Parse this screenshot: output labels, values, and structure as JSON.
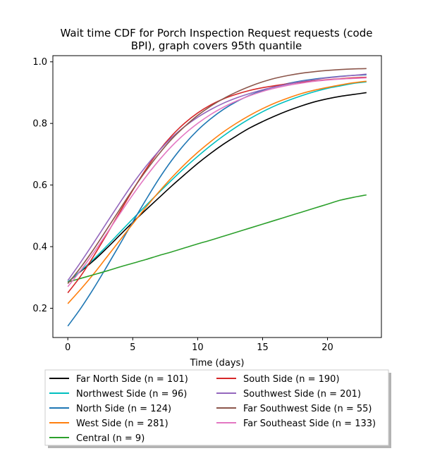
{
  "chart_data": {
    "type": "line",
    "title": "Wait time CDF for Porch Inspection Request  requests (code BPI), graph covers 95th quantile",
    "title_lines": [
      "Wait time CDF for Porch Inspection Request  requests (code",
      "BPI), graph covers 95th quantile"
    ],
    "xlabel": "Time (days)",
    "ylabel": "",
    "xlim": [
      -1.15,
      24.15
    ],
    "ylim": [
      0.105,
      1.02
    ],
    "x_ticks": [
      0,
      5,
      10,
      15,
      20
    ],
    "y_ticks": [
      0.2,
      0.4,
      0.6,
      0.8,
      1.0
    ],
    "x_tick_labels": [
      "0",
      "5",
      "10",
      "15",
      "20"
    ],
    "y_tick_labels": [
      "0.2",
      "0.4",
      "0.6",
      "0.8",
      "1.0"
    ],
    "grid": false,
    "legend_placement": "below plot, two columns",
    "x": [
      0,
      1,
      2,
      3,
      4,
      5,
      6,
      7,
      8,
      9,
      10,
      11,
      12,
      13,
      14,
      15,
      16,
      17,
      18,
      19,
      20,
      21,
      22,
      23
    ],
    "series": [
      {
        "name": "Far North Side (n = 101)",
        "color": "#000000",
        "values": [
          0.285,
          0.32,
          0.355,
          0.395,
          0.437,
          0.479,
          0.519,
          0.558,
          0.597,
          0.634,
          0.67,
          0.703,
          0.733,
          0.76,
          0.785,
          0.806,
          0.825,
          0.842,
          0.857,
          0.87,
          0.88,
          0.888,
          0.894,
          0.9
        ]
      },
      {
        "name": "Northwest Side (n = 96)",
        "color": "#00bfbf",
        "values": [
          0.285,
          0.322,
          0.36,
          0.402,
          0.446,
          0.49,
          0.533,
          0.575,
          0.616,
          0.656,
          0.693,
          0.728,
          0.76,
          0.789,
          0.815,
          0.838,
          0.858,
          0.875,
          0.89,
          0.903,
          0.914,
          0.922,
          0.93,
          0.935
        ]
      },
      {
        "name": "North Side (n = 124)",
        "color": "#1f77b4",
        "values": [
          0.142,
          0.2,
          0.265,
          0.335,
          0.407,
          0.48,
          0.551,
          0.619,
          0.68,
          0.733,
          0.778,
          0.815,
          0.846,
          0.871,
          0.891,
          0.907,
          0.92,
          0.93,
          0.938,
          0.944,
          0.949,
          0.953,
          0.956,
          0.958
        ]
      },
      {
        "name": "West Side (n = 281)",
        "color": "#ff7f0e",
        "values": [
          0.215,
          0.262,
          0.312,
          0.366,
          0.42,
          0.474,
          0.527,
          0.577,
          0.624,
          0.667,
          0.706,
          0.741,
          0.773,
          0.801,
          0.826,
          0.848,
          0.867,
          0.883,
          0.897,
          0.908,
          0.917,
          0.925,
          0.932,
          0.937
        ]
      },
      {
        "name": "Central (n = 9)",
        "color": "#2ca02c",
        "values": [
          0.285,
          0.297,
          0.309,
          0.321,
          0.334,
          0.346,
          0.358,
          0.371,
          0.383,
          0.396,
          0.409,
          0.421,
          0.434,
          0.447,
          0.46,
          0.473,
          0.486,
          0.499,
          0.512,
          0.525,
          0.538,
          0.551,
          0.56,
          0.568
        ]
      },
      {
        "name": "South Side (n = 190)",
        "color": "#d62728",
        "values": [
          0.25,
          0.305,
          0.37,
          0.44,
          0.512,
          0.583,
          0.65,
          0.71,
          0.76,
          0.801,
          0.834,
          0.86,
          0.88,
          0.895,
          0.907,
          0.916,
          0.923,
          0.929,
          0.934,
          0.938,
          0.942,
          0.945,
          0.948,
          0.95
        ]
      },
      {
        "name": "Southwest Side (n = 201)",
        "color": "#9467bd",
        "values": [
          0.29,
          0.35,
          0.413,
          0.478,
          0.542,
          0.604,
          0.66,
          0.71,
          0.754,
          0.79,
          0.82,
          0.845,
          0.866,
          0.883,
          0.897,
          0.909,
          0.919,
          0.928,
          0.936,
          0.942,
          0.948,
          0.952,
          0.956,
          0.96
        ]
      },
      {
        "name": "Far Southwest Side (n = 55)",
        "color": "#8c564b",
        "values": [
          0.28,
          0.333,
          0.392,
          0.456,
          0.521,
          0.585,
          0.645,
          0.7,
          0.749,
          0.79,
          0.826,
          0.856,
          0.881,
          0.902,
          0.92,
          0.935,
          0.947,
          0.956,
          0.963,
          0.968,
          0.972,
          0.975,
          0.977,
          0.978
        ]
      },
      {
        "name": "Far Southeast Side (n = 133)",
        "color": "#e377c2",
        "values": [
          0.27,
          0.323,
          0.381,
          0.443,
          0.506,
          0.568,
          0.626,
          0.679,
          0.726,
          0.766,
          0.8,
          0.829,
          0.853,
          0.873,
          0.89,
          0.904,
          0.915,
          0.924,
          0.931,
          0.937,
          0.941,
          0.944,
          0.946,
          0.948
        ]
      }
    ]
  }
}
